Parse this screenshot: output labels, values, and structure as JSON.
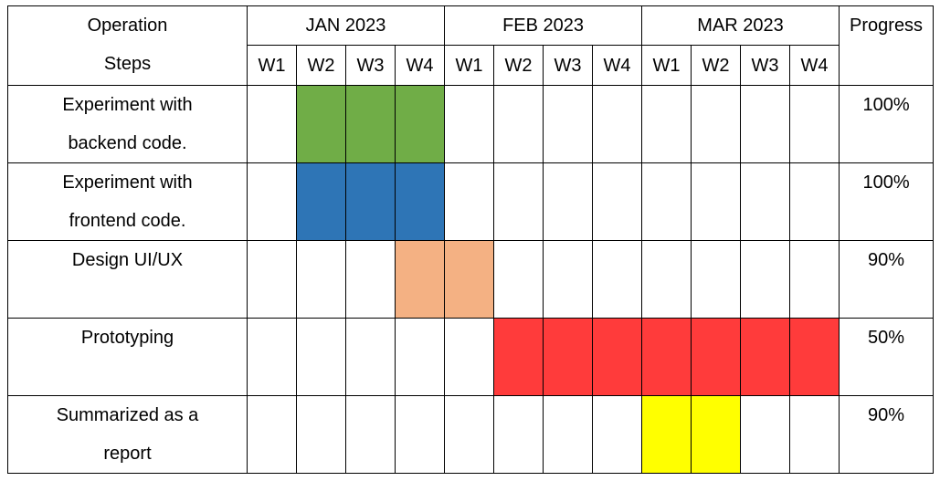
{
  "chart_data": {
    "type": "table",
    "header": {
      "task_label_line1": "Operation",
      "task_label_line2": "Steps",
      "progress_label": "Progress"
    },
    "months": [
      {
        "label": "JAN 2023",
        "weeks": [
          "W1",
          "W2",
          "W3",
          "W4"
        ]
      },
      {
        "label": "FEB 2023",
        "weeks": [
          "W1",
          "W2",
          "W3",
          "W4"
        ]
      },
      {
        "label": "MAR 2023",
        "weeks": [
          "W1",
          "W2",
          "W3",
          "W4"
        ]
      }
    ],
    "tasks": [
      {
        "name_line1": "Experiment with",
        "name_line2": "backend code.",
        "progress": "100%",
        "start_week": 2,
        "end_week": 4,
        "color": "#70ad47"
      },
      {
        "name_line1": "Experiment with",
        "name_line2": "frontend code.",
        "progress": "100%",
        "start_week": 2,
        "end_week": 4,
        "color": "#2e75b6"
      },
      {
        "name_line1": "Design UI/UX",
        "name_line2": "",
        "progress": "90%",
        "start_week": 4,
        "end_week": 5,
        "color": "#f4b183"
      },
      {
        "name_line1": "Prototyping",
        "name_line2": "",
        "progress": "50%",
        "start_week": 6,
        "end_week": 12,
        "color": "#ff3b3b"
      },
      {
        "name_line1": "Summarized as a",
        "name_line2": "report",
        "progress": "90%",
        "start_week": 9,
        "end_week": 10,
        "color": "#ffff00"
      }
    ]
  }
}
